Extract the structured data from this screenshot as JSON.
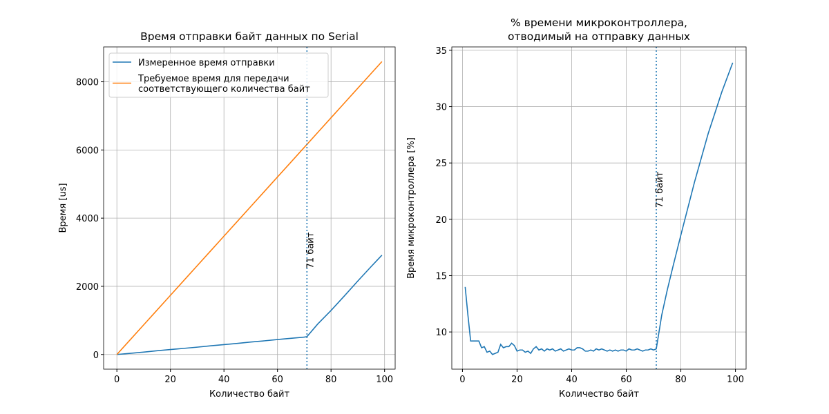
{
  "chart_data": [
    {
      "type": "line",
      "title": "Время отправки байт данных по Serial",
      "xlabel": "Количество байт",
      "ylabel": "Время [us]",
      "x": [
        0,
        5,
        10,
        15,
        20,
        25,
        30,
        35,
        40,
        45,
        50,
        55,
        60,
        65,
        70,
        71,
        75,
        80,
        85,
        90,
        95,
        99
      ],
      "series": [
        {
          "name": "Измеренное время отправки",
          "color": "#1f77b4",
          "values": [
            0,
            35,
            70,
            110,
            145,
            180,
            215,
            255,
            290,
            325,
            365,
            400,
            440,
            475,
            510,
            523,
            892,
            1292,
            1719,
            2156,
            2581,
            2913
          ]
        },
        {
          "name": "Требуемое время для передачи\nсоответствующего количества байт",
          "color": "#ff7f0e",
          "values": [
            0,
            434,
            868,
            1302,
            1736,
            2170,
            2604,
            3038,
            3472,
            3906,
            4340,
            4774,
            5208,
            5642,
            6076,
            6163,
            6510,
            6944,
            7378,
            7812,
            8246,
            8593
          ]
        }
      ],
      "vline": 71,
      "vline_color": "#1f77b4",
      "annotation": "71 байт",
      "xlim": [
        -4.95,
        103.95
      ],
      "xticks": [
        0,
        20,
        40,
        60,
        80,
        100
      ],
      "ylim": [
        -430,
        9023
      ],
      "yticks": [
        0,
        2000,
        4000,
        6000,
        8000
      ],
      "grid": true,
      "legend": "upper left"
    },
    {
      "type": "line",
      "title": "% времени микроконтроллера,\nотводимый на отправку данных",
      "xlabel": "Количество байт",
      "ylabel": "Время микроконтроллера [%]",
      "x": [
        1,
        2,
        3,
        4,
        5,
        6,
        7,
        8,
        9,
        10,
        11,
        12,
        13,
        14,
        15,
        16,
        17,
        18,
        19,
        20,
        21,
        22,
        23,
        24,
        25,
        26,
        27,
        28,
        29,
        30,
        31,
        32,
        33,
        34,
        35,
        36,
        37,
        38,
        39,
        40,
        41,
        42,
        43,
        44,
        45,
        46,
        47,
        48,
        49,
        50,
        51,
        52,
        53,
        54,
        55,
        56,
        57,
        58,
        59,
        60,
        61,
        62,
        63,
        64,
        65,
        66,
        67,
        68,
        69,
        70,
        71,
        73,
        75,
        77,
        80,
        85,
        90,
        95,
        99
      ],
      "series": [
        {
          "name": "% времени",
          "color": "#1f77b4",
          "values": [
            14,
            11.5,
            9.2,
            9.2,
            9.2,
            9.2,
            8.6,
            8.7,
            8.2,
            8.3,
            8.0,
            8.1,
            8.2,
            8.9,
            8.6,
            8.7,
            8.7,
            9.0,
            8.8,
            8.3,
            8.4,
            8.4,
            8.2,
            8.3,
            8.1,
            8.5,
            8.7,
            8.4,
            8.5,
            8.3,
            8.5,
            8.4,
            8.5,
            8.3,
            8.4,
            8.5,
            8.3,
            8.4,
            8.5,
            8.4,
            8.4,
            8.6,
            8.6,
            8.5,
            8.3,
            8.3,
            8.4,
            8.3,
            8.5,
            8.4,
            8.5,
            8.4,
            8.3,
            8.4,
            8.3,
            8.4,
            8.3,
            8.4,
            8.4,
            8.3,
            8.5,
            8.4,
            8.4,
            8.5,
            8.4,
            8.3,
            8.4,
            8.4,
            8.5,
            8.4,
            8.5,
            11.5,
            13.7,
            15.7,
            18.6,
            23.3,
            27.6,
            31.3,
            33.9
          ]
        }
      ],
      "vline": 71,
      "vline_color": "#1f77b4",
      "annotation": "71 байт",
      "xlim": [
        -3.9,
        103.9
      ],
      "xticks": [
        0,
        20,
        40,
        60,
        80,
        100
      ],
      "ylim": [
        6.7,
        35.3
      ],
      "yticks": [
        10,
        15,
        20,
        25,
        30,
        35
      ],
      "grid": true
    }
  ]
}
